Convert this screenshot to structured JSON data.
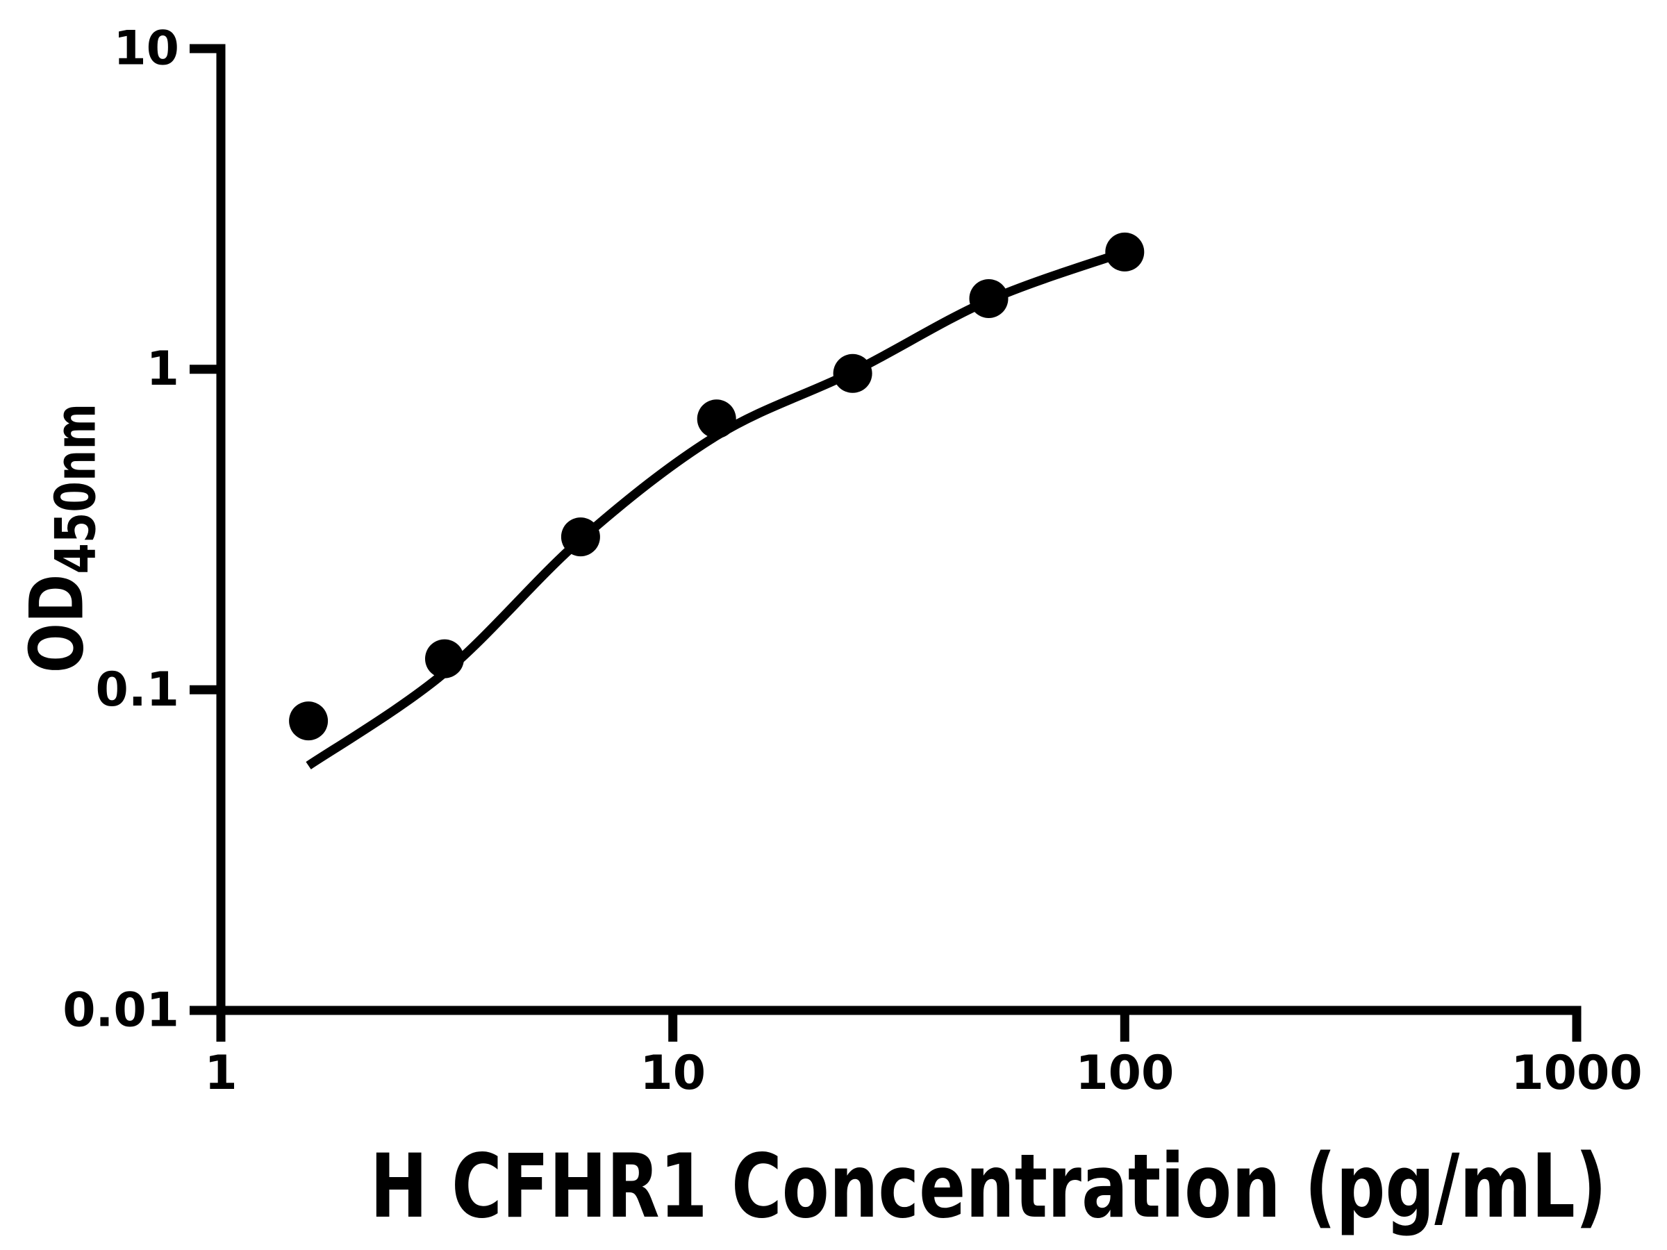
{
  "figure": {
    "background": "#ffffff",
    "ink_color": "#000000"
  },
  "chart_data": {
    "type": "scatter",
    "title": "",
    "xlabel": "H CFHR1 Concentration (pg/mL)",
    "ylabel": "OD",
    "ylabel_subscript": "450nm",
    "x_scale": "log10",
    "y_scale": "log10",
    "xlim": [
      1,
      1000
    ],
    "ylim": [
      0.01,
      10
    ],
    "grid": false,
    "legend": "none",
    "x_ticks": [
      {
        "value": 1,
        "label": "1"
      },
      {
        "value": 10,
        "label": "10"
      },
      {
        "value": 100,
        "label": "100"
      },
      {
        "value": 1000,
        "label": "1000"
      }
    ],
    "y_ticks": [
      {
        "value": 10,
        "label": "10"
      },
      {
        "value": 1,
        "label": "1"
      },
      {
        "value": 0.1,
        "label": "0.1"
      },
      {
        "value": 0.01,
        "label": "0.01"
      }
    ],
    "series": [
      {
        "marker": "filled-circle",
        "color": "#000000",
        "points": [
          {
            "x": 1.5625,
            "y": 0.08
          },
          {
            "x": 3.125,
            "y": 0.125
          },
          {
            "x": 6.25,
            "y": 0.3
          },
          {
            "x": 12.5,
            "y": 0.7
          },
          {
            "x": 25,
            "y": 0.97
          },
          {
            "x": 50,
            "y": 1.66
          },
          {
            "x": 100,
            "y": 2.32
          }
        ]
      }
    ],
    "fit_curve": {
      "color": "#000000",
      "points": [
        {
          "x": 1.5625,
          "y": 0.058
        },
        {
          "x": 3.125,
          "y": 0.113
        },
        {
          "x": 6.25,
          "y": 0.294
        },
        {
          "x": 12.5,
          "y": 0.62
        },
        {
          "x": 25,
          "y": 0.98
        },
        {
          "x": 50,
          "y": 1.64
        },
        {
          "x": 100,
          "y": 2.32
        }
      ]
    }
  }
}
